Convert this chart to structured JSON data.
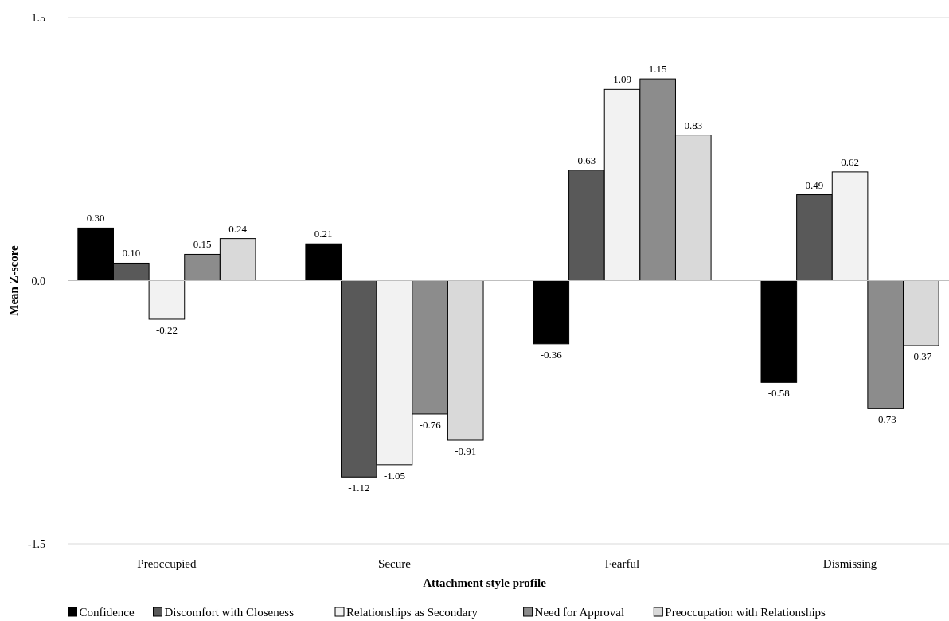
{
  "chart_data": {
    "type": "bar",
    "xlabel": "Attachment  style profile",
    "ylabel": "Mean Z-score",
    "categories": [
      "Preoccupied",
      "Secure",
      "Fearful",
      "Dismissing"
    ],
    "series": [
      {
        "name": "Confidence",
        "color": "#000000",
        "values": [
          0.3,
          0.21,
          -0.36,
          -0.58
        ],
        "value_labels": [
          "0.30",
          "0.21",
          "-0.36",
          "-0.58"
        ]
      },
      {
        "name": "Discomfort with Closeness",
        "color": "#595959",
        "values": [
          0.1,
          -1.12,
          0.63,
          0.49
        ],
        "value_labels": [
          "0.10",
          "-1.12",
          "0.63",
          "0.49"
        ]
      },
      {
        "name": "Relationships as Secondary",
        "color": "#f2f2f2",
        "values": [
          -0.22,
          -1.05,
          1.09,
          0.62
        ],
        "value_labels": [
          "-0.22",
          "-1.05",
          "1.09",
          "0.62"
        ]
      },
      {
        "name": "Need for Approval",
        "color": "#8c8c8c",
        "values": [
          0.15,
          -0.76,
          1.15,
          -0.73
        ],
        "value_labels": [
          "0.15",
          "-0.76",
          "1.15",
          "-0.73"
        ]
      },
      {
        "name": "Preoccupation with Relationships",
        "color": "#d9d9d9",
        "values": [
          0.24,
          -0.91,
          0.83,
          -0.37
        ],
        "value_labels": [
          "0.24",
          "-0.91",
          "0.83",
          "-0.37"
        ]
      }
    ],
    "ylim": [
      -1.5,
      1.5
    ],
    "yticks": [
      {
        "value": -1.5,
        "label": "-1.5"
      },
      {
        "value": 0,
        "label": "0.0"
      },
      {
        "value": 1.5,
        "label": "1.5"
      }
    ],
    "grid": "y",
    "legend": "bottom"
  }
}
